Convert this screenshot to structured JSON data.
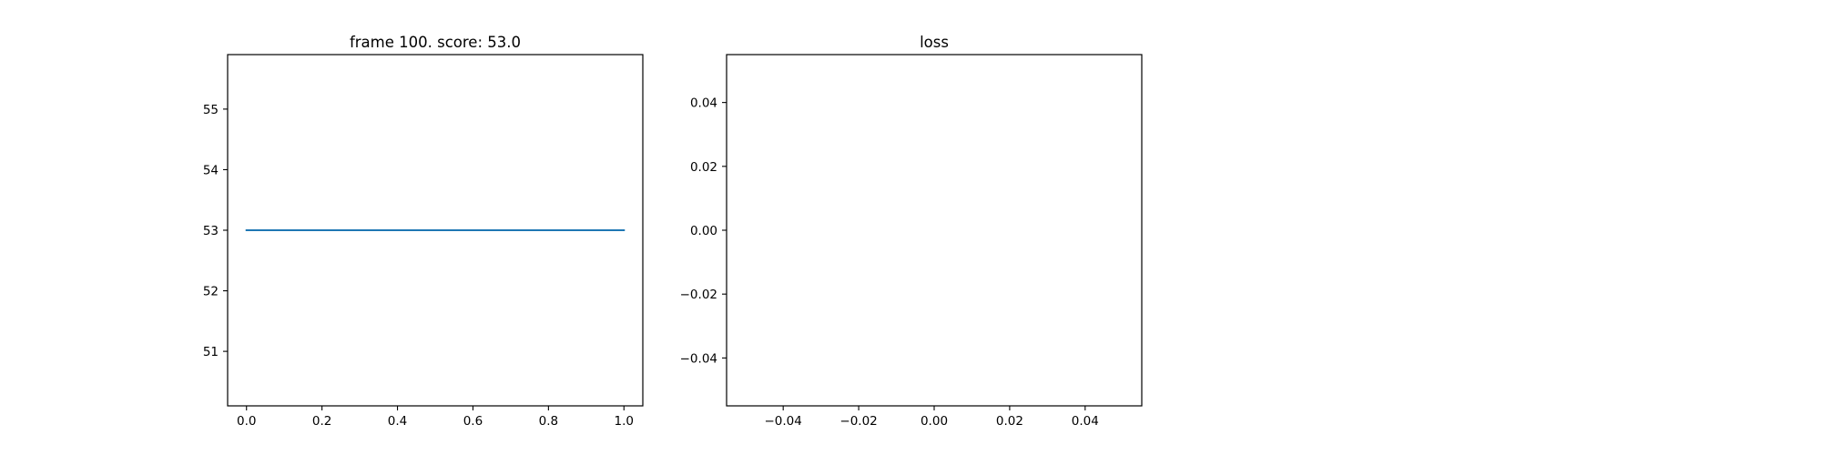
{
  "chart_data": [
    {
      "type": "line",
      "title": "frame 100. score: 53.0",
      "xlabel": "",
      "ylabel": "",
      "xlim": [
        -0.05,
        1.05
      ],
      "ylim": [
        50.1,
        55.9
      ],
      "xticks": [
        0.0,
        0.2,
        0.4,
        0.6,
        0.8,
        1.0
      ],
      "xtick_labels": [
        "0.0",
        "0.2",
        "0.4",
        "0.6",
        "0.8",
        "1.0"
      ],
      "yticks": [
        51,
        52,
        53,
        54,
        55
      ],
      "ytick_labels": [
        "51",
        "52",
        "53",
        "54",
        "55"
      ],
      "grid": false,
      "series": [
        {
          "color": "#1f77b4",
          "x": [
            0,
            1
          ],
          "y": [
            53.0,
            53.0
          ]
        }
      ]
    },
    {
      "type": "line",
      "title": "loss",
      "xlabel": "",
      "ylabel": "",
      "xlim": [
        -0.055,
        0.055
      ],
      "ylim": [
        -0.055,
        0.055
      ],
      "xticks": [
        -0.04,
        -0.02,
        0.0,
        0.02,
        0.04
      ],
      "xtick_labels": [
        "−0.04",
        "−0.02",
        "0.00",
        "0.02",
        "0.04"
      ],
      "yticks": [
        -0.04,
        -0.02,
        0.0,
        0.02,
        0.04
      ],
      "ytick_labels": [
        "−0.04",
        "−0.02",
        "0.00",
        "0.02",
        "0.04"
      ],
      "grid": false,
      "series": []
    }
  ]
}
